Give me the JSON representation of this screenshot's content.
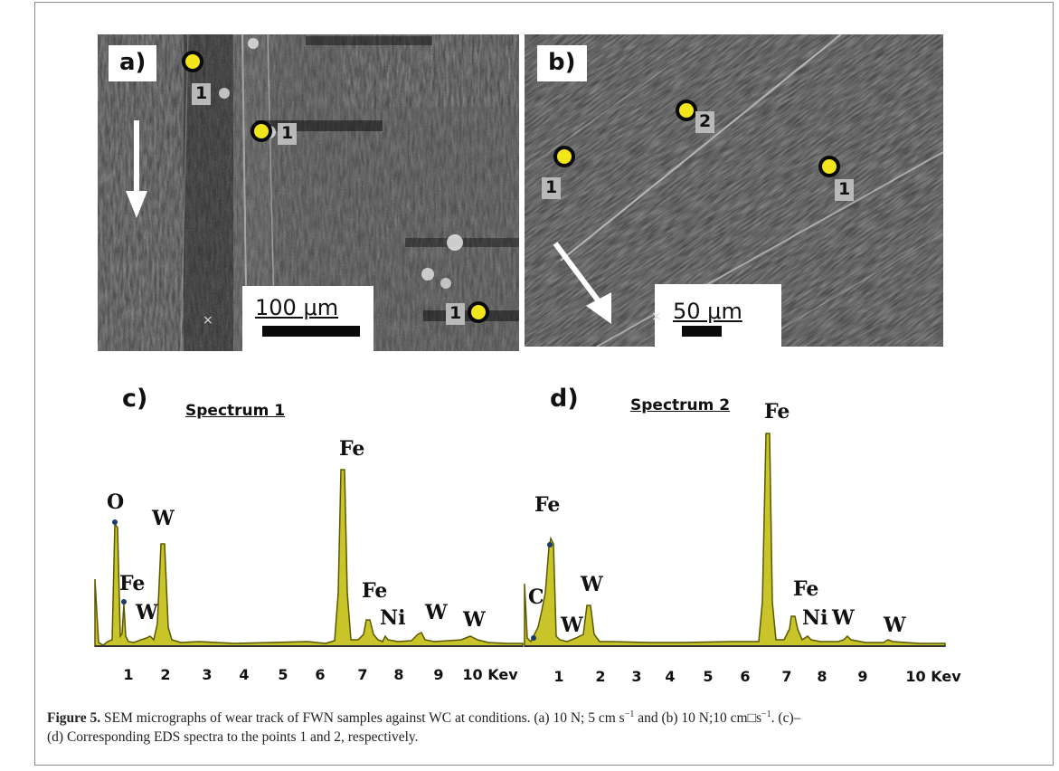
{
  "panel_a": {
    "label": "a)",
    "markers": [
      "1",
      "1",
      "1"
    ],
    "scale_bar": "100 μm",
    "x_mark": "×"
  },
  "panel_b": {
    "label": "b)",
    "markers": [
      "2",
      "1",
      "1"
    ],
    "scale_bar": "50 μm",
    "x_mark": "×"
  },
  "spectrum_c": {
    "label": "c)",
    "title": "Spectrum 1",
    "peaks": [
      "O",
      "Fe",
      "W",
      "W",
      "Fe",
      "Fe",
      "Ni",
      "W",
      "W"
    ],
    "axis_ticks": [
      "1",
      "2",
      "3",
      "4",
      "5",
      "6",
      "7",
      "8",
      "9",
      "10 Kev"
    ]
  },
  "spectrum_d": {
    "label": "d)",
    "title": "Spectrum 2",
    "peaks": [
      "C",
      "Fe",
      "W",
      "W",
      "Fe",
      "Fe",
      "Ni",
      "W",
      "W"
    ],
    "axis_ticks": [
      "1",
      "2",
      "3",
      "4",
      "5",
      "6",
      "7",
      "8",
      "9",
      "10 Kev"
    ]
  },
  "caption": {
    "figure_label": "Figure 5.",
    "text_1": " SEM micrographs of wear track of FWN samples against WC at conditions. (a) 10 N; 5 cm s",
    "sup_1": "−1",
    "text_2": " and (b) 10 N;10 cm",
    "box_glyph": "□",
    "text_3": "s",
    "sup_2": "−1",
    "text_4": ". (c)–",
    "line_2": "(d) Corresponding EDS spectra to the points 1 and 2, respectively."
  },
  "colors": {
    "spectrum_fill": "#c8c42a",
    "spectrum_line": "#5a5800",
    "marker_fill": "#f2e61a",
    "frame": "#8c8c8c"
  }
}
